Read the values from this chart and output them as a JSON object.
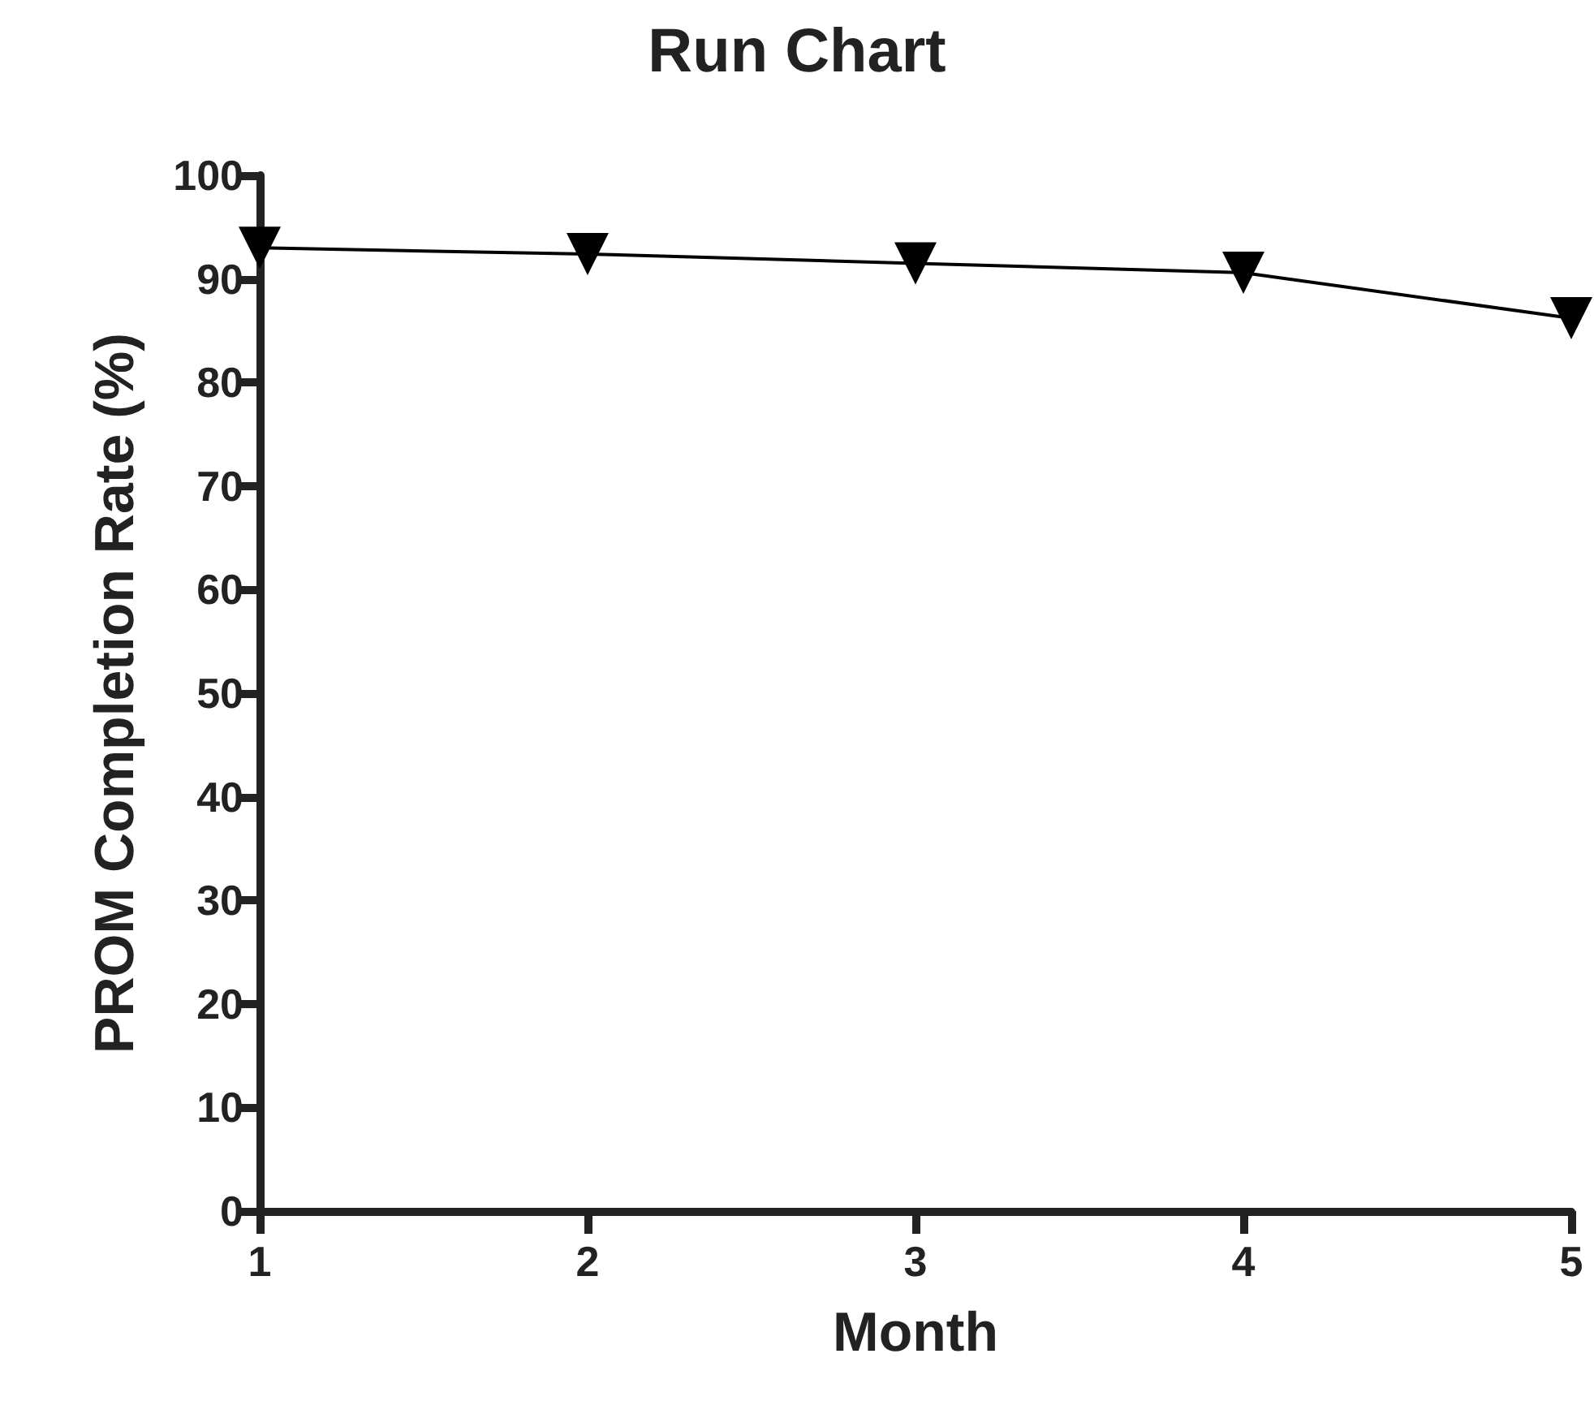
{
  "chart_data": {
    "type": "line",
    "title": "Run Chart",
    "xlabel": "Month",
    "ylabel": "PROM Completion Rate (%)",
    "x": [
      1,
      2,
      3,
      4,
      5
    ],
    "series": [
      {
        "color": "#000000",
        "values": [
          93,
          92.4,
          91.5,
          90.6,
          86.2
        ]
      }
    ],
    "xlim": [
      1,
      5
    ],
    "xticks": [
      1,
      2,
      3,
      4,
      5
    ],
    "ylim": [
      0,
      100
    ],
    "yticks": [
      0,
      10,
      20,
      30,
      40,
      50,
      60,
      70,
      80,
      90,
      100
    ],
    "grid": false,
    "marker": "triangle",
    "line_style": "solid"
  }
}
